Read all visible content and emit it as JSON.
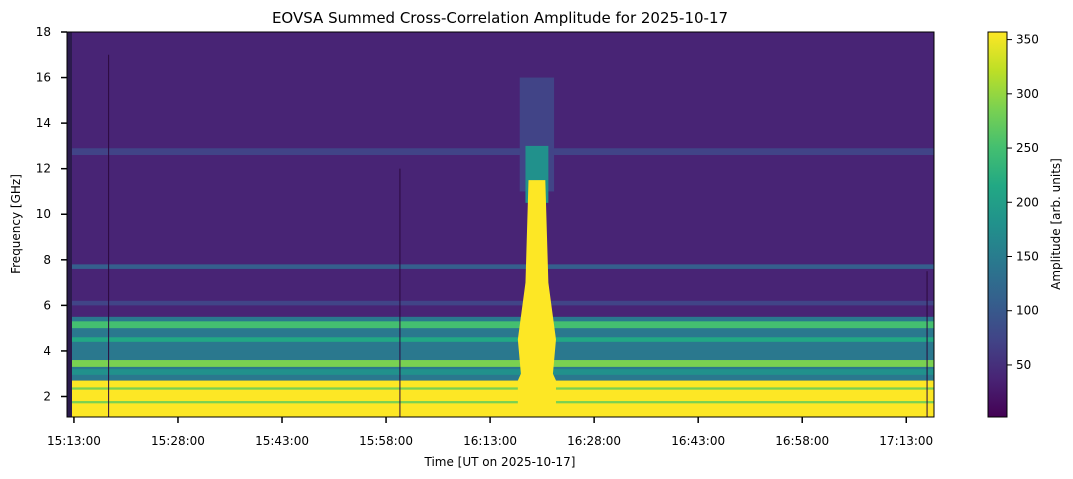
{
  "chart_data": {
    "type": "heatmap",
    "title": "EOVSA Summed Cross-Correlation Amplitude for 2025-10-17",
    "xlabel": "Time [UT on 2025-10-17]",
    "ylabel": "Frequency [GHz]",
    "x_tick_labels": [
      "15:13:00",
      "15:28:00",
      "15:43:00",
      "15:58:00",
      "16:13:00",
      "16:28:00",
      "16:43:00",
      "16:58:00",
      "17:13:00"
    ],
    "y_ticks": [
      2,
      4,
      6,
      8,
      10,
      12,
      14,
      16,
      18
    ],
    "ylim": [
      1.1,
      18
    ],
    "xlim": [
      "15:12:00",
      "17:17:00"
    ],
    "colormap": "viridis",
    "colorbar": {
      "label": "Amplitude [arb. units]",
      "ticks": [
        50,
        100,
        150,
        200,
        250,
        300,
        350
      ],
      "range": [
        2,
        357
      ]
    },
    "features": {
      "burst": {
        "start": "16:17:00",
        "end": "16:22:30",
        "peak_freq_range": [
          1.1,
          11.5
        ],
        "amplitude": "saturated (>=357)"
      },
      "low_freq_band": {
        "freq_range": [
          1.1,
          2.7
        ],
        "amplitude": "saturated (>=357)"
      },
      "mid_band": {
        "freq_range": [
          2.7,
          5.5
        ],
        "amplitude": 190
      },
      "background_above_6ghz": {
        "amplitude": 20
      }
    }
  }
}
